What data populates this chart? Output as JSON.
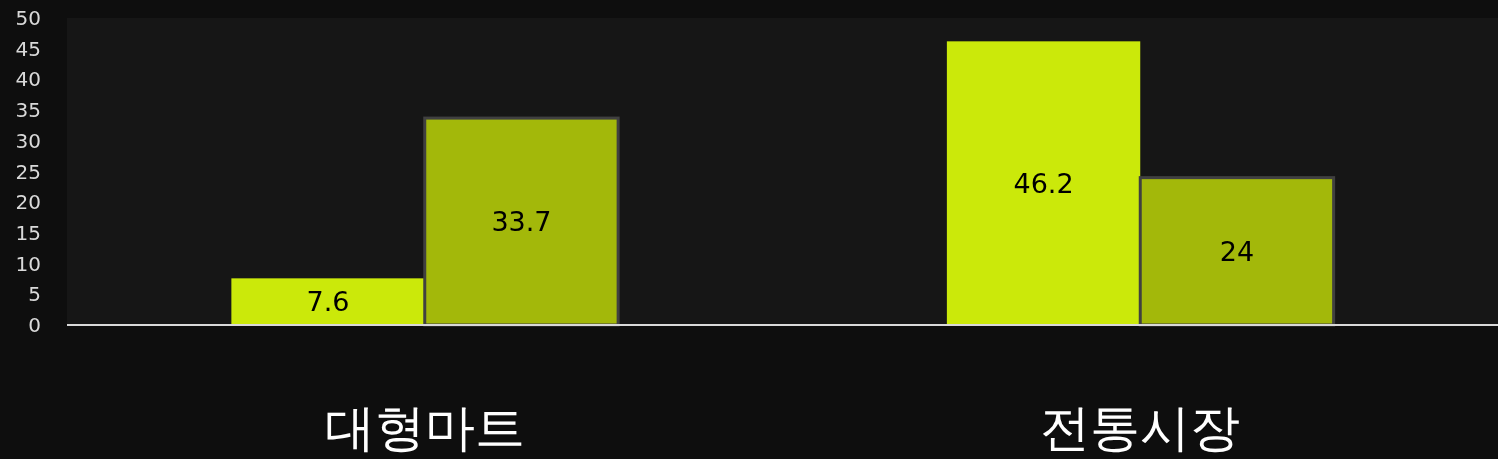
{
  "chart_data": {
    "type": "bar",
    "categories": [
      "대형마트",
      "전통시장"
    ],
    "series": [
      {
        "color": "#cbe90a",
        "values": [
          7.6,
          46.2
        ]
      },
      {
        "color": "#a3b80a",
        "values": [
          33.7,
          24
        ]
      }
    ],
    "ylim": [
      0,
      50
    ],
    "yticks": [
      0,
      5,
      10,
      15,
      20,
      25,
      30,
      35,
      40,
      45,
      50
    ],
    "data_labels": true
  }
}
